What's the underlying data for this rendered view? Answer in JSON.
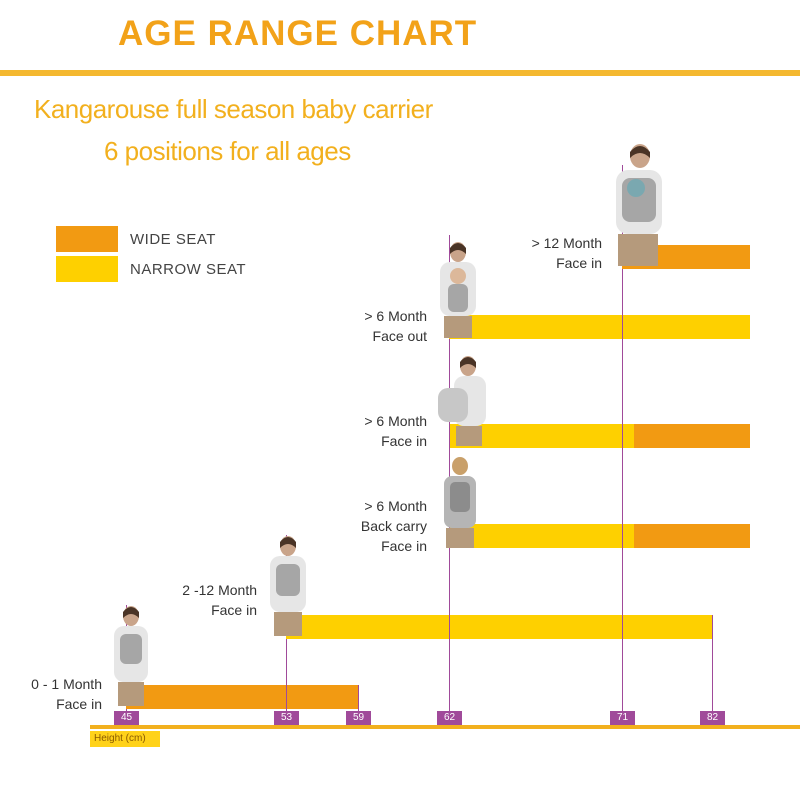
{
  "title": "AGE RANGE CHART",
  "subtitle_line1": "Kangarouse full season baby carrier",
  "subtitle_line2": "6  positions for all ages",
  "legend": [
    {
      "label": "WIDE SEAT",
      "color": "#f29a12"
    },
    {
      "label": "NARROW SEAT",
      "color": "#fed000"
    }
  ],
  "axis": {
    "unit_label": "Height (cm)"
  },
  "chart_data": {
    "type": "bar",
    "orientation": "horizontal-range",
    "xlabel": "Height (cm)",
    "x_ticks": [
      45,
      53,
      59,
      62,
      71,
      82
    ],
    "xlim": [
      45,
      84
    ],
    "series_colors": {
      "wide_seat": "#f29a12",
      "narrow_seat": "#fed000"
    },
    "categories": [
      {
        "label_lines": [
          "0 - 1 Month",
          "Face in"
        ],
        "start": 45,
        "end": 59,
        "segments": [
          {
            "seat": "wide_seat",
            "from": 45,
            "to": 59
          }
        ]
      },
      {
        "label_lines": [
          "2 -12 Month",
          "Face in"
        ],
        "start": 53,
        "end": 82,
        "segments": [
          {
            "seat": "narrow_seat",
            "from": 53,
            "to": 82
          }
        ]
      },
      {
        "label_lines": [
          "> 6 Month",
          "Back carry",
          "Face in"
        ],
        "start": 62,
        "end": 84,
        "segments": [
          {
            "seat": "narrow_seat",
            "from": 62,
            "to": 72.5
          },
          {
            "seat": "wide_seat",
            "from": 72.5,
            "to": 84
          }
        ]
      },
      {
        "label_lines": [
          "> 6 Month",
          "Face in"
        ],
        "start": 62,
        "end": 84,
        "segments": [
          {
            "seat": "narrow_seat",
            "from": 62,
            "to": 72.5
          },
          {
            "seat": "wide_seat",
            "from": 72.5,
            "to": 84
          }
        ]
      },
      {
        "label_lines": [
          "> 6 Month",
          "Face out"
        ],
        "start": 62,
        "end": 84,
        "segments": [
          {
            "seat": "narrow_seat",
            "from": 62,
            "to": 84
          }
        ]
      },
      {
        "label_lines": [
          "> 12 Month",
          "Face in"
        ],
        "start": 71,
        "end": 84,
        "segments": [
          {
            "seat": "wide_seat",
            "from": 71,
            "to": 84
          }
        ]
      }
    ]
  }
}
